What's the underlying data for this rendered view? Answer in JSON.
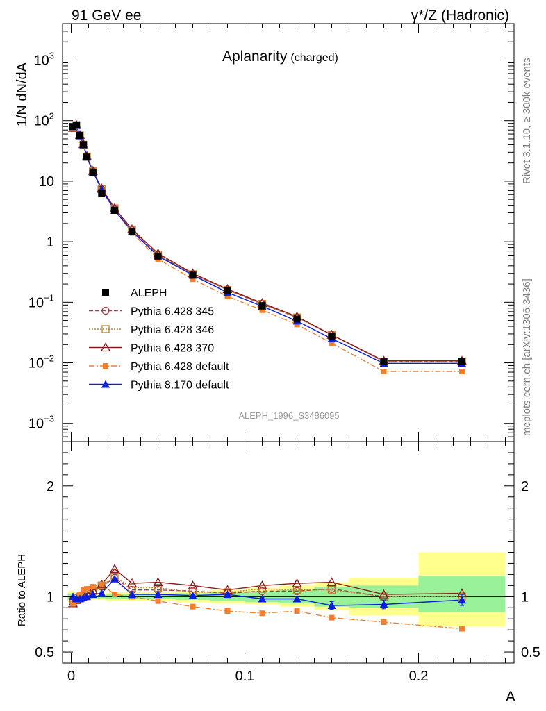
{
  "header": {
    "left": "91 GeV ee",
    "right": "γ*/Z (Hadronic)"
  },
  "side_labels": {
    "rivet": "Rivet 3.1.10, ≥ 300k events",
    "mcplots": "mcplots.cern.ch [arXiv:1306.3436]"
  },
  "colors": {
    "data": "#000000",
    "py345": "#b03a4a",
    "py346": "#b8862f",
    "py370": "#8b1a1a",
    "py6def": "#f07f2e",
    "py8def": "#0a1ee0",
    "band_inner": "#99f299",
    "band_outer": "#ffff8c"
  },
  "chart_data": [
    {
      "type": "line",
      "title": "Aplanarity",
      "title_suffix": "(charged)",
      "ylabel": "1/N dN/dA",
      "watermark": "ALEPH_1996_S3486095",
      "yscale": "log",
      "xlim": [
        -0.005,
        0.255
      ],
      "ylim": [
        0.0005,
        4000
      ],
      "y_ticks": [
        {
          "v": 0.001,
          "base": "10",
          "exp": "−3"
        },
        {
          "v": 0.01,
          "base": "10",
          "exp": "−2"
        },
        {
          "v": 0.1,
          "base": "10",
          "exp": "−1"
        },
        {
          "v": 1,
          "base": "1",
          "exp": ""
        },
        {
          "v": 10,
          "base": "10",
          "exp": ""
        },
        {
          "v": 100,
          "base": "10",
          "exp": "2"
        },
        {
          "v": 1000,
          "base": "10",
          "exp": "3"
        }
      ],
      "legend_position": "middle-left",
      "x": [
        0.001,
        0.003,
        0.005,
        0.007,
        0.009,
        0.0125,
        0.0175,
        0.025,
        0.035,
        0.05,
        0.07,
        0.09,
        0.11,
        0.13,
        0.15,
        0.18,
        0.225
      ],
      "data": {
        "name": "ALEPH",
        "values": [
          80,
          85,
          57,
          40,
          25,
          14,
          6.2,
          3.3,
          1.45,
          0.58,
          0.28,
          0.155,
          0.088,
          0.053,
          0.027,
          0.0105,
          0.0105
        ]
      },
      "series": [
        {
          "name": "Pythia 6.428 345",
          "key": "py345",
          "marker": "circle-open",
          "dash": "6,3",
          "values": [
            78,
            84,
            57,
            40,
            25.5,
            14.6,
            7.3,
            3.5,
            1.55,
            0.6,
            0.29,
            0.16,
            0.093,
            0.056,
            0.029,
            0.0105,
            0.0105
          ]
        },
        {
          "name": "Pythia 6.428 346",
          "key": "py346",
          "marker": "square-open",
          "dash": "2,2",
          "values": [
            77,
            84,
            57,
            40,
            25.5,
            14.7,
            7.4,
            3.55,
            1.57,
            0.61,
            0.29,
            0.16,
            0.094,
            0.056,
            0.029,
            0.0105,
            0.0105
          ]
        },
        {
          "name": "Pythia 6.428 370",
          "key": "py370",
          "marker": "triangle-open",
          "dash": "",
          "values": [
            76,
            85,
            58,
            41,
            26,
            14.8,
            7.6,
            3.6,
            1.6,
            0.64,
            0.3,
            0.165,
            0.097,
            0.058,
            0.029,
            0.0108,
            0.0108
          ]
        },
        {
          "name": "Pythia 6.428 default",
          "key": "py6def",
          "marker": "square-filled",
          "dash": "8,3,2,3",
          "values": [
            75,
            82,
            57,
            41,
            26,
            14.5,
            7.2,
            3.3,
            1.4,
            0.52,
            0.24,
            0.125,
            0.074,
            0.043,
            0.021,
            0.0072,
            0.0072
          ]
        },
        {
          "name": "Pythia 8.170 default",
          "key": "py8def",
          "marker": "triangle-filled",
          "dash": "",
          "values": [
            80,
            84,
            56,
            40,
            25,
            14.2,
            7.3,
            3.3,
            1.48,
            0.58,
            0.28,
            0.145,
            0.086,
            0.049,
            0.025,
            0.0098,
            0.0098
          ]
        }
      ]
    },
    {
      "type": "line",
      "ylabel": "Ratio to ALEPH",
      "xlabel": "A",
      "xlim": [
        -0.005,
        0.255
      ],
      "ylim": [
        0.4,
        2.4
      ],
      "y_ticks": [
        0.5,
        1,
        2
      ],
      "x_ticks": [
        0,
        0.1,
        0.2
      ],
      "bands": [
        {
          "x0": -0.002,
          "x1": 0.002,
          "inner": [
            0.97,
            1.03
          ],
          "outer": [
            0.95,
            1.05
          ]
        },
        {
          "x0": 0.002,
          "x1": 0.008,
          "inner": [
            0.98,
            1.02
          ],
          "outer": [
            0.97,
            1.03
          ]
        },
        {
          "x0": 0.008,
          "x1": 0.02,
          "inner": [
            0.985,
            1.015
          ],
          "outer": [
            0.975,
            1.025
          ]
        },
        {
          "x0": 0.02,
          "x1": 0.04,
          "inner": [
            0.98,
            1.02
          ],
          "outer": [
            0.96,
            1.04
          ]
        },
        {
          "x0": 0.04,
          "x1": 0.06,
          "inner": [
            0.98,
            1.02
          ],
          "outer": [
            0.96,
            1.04
          ]
        },
        {
          "x0": 0.06,
          "x1": 0.08,
          "inner": [
            0.97,
            1.03
          ],
          "outer": [
            0.95,
            1.05
          ]
        },
        {
          "x0": 0.08,
          "x1": 0.1,
          "inner": [
            0.96,
            1.04
          ],
          "outer": [
            0.94,
            1.06
          ]
        },
        {
          "x0": 0.1,
          "x1": 0.12,
          "inner": [
            0.95,
            1.05
          ],
          "outer": [
            0.93,
            1.08
          ]
        },
        {
          "x0": 0.12,
          "x1": 0.14,
          "inner": [
            0.94,
            1.06
          ],
          "outer": [
            0.91,
            1.1
          ]
        },
        {
          "x0": 0.14,
          "x1": 0.16,
          "inner": [
            0.91,
            1.09
          ],
          "outer": [
            0.88,
            1.13
          ]
        },
        {
          "x0": 0.16,
          "x1": 0.2,
          "inner": [
            0.9,
            1.1
          ],
          "outer": [
            0.83,
            1.17
          ]
        },
        {
          "x0": 0.2,
          "x1": 0.25,
          "inner": [
            0.86,
            1.19
          ],
          "outer": [
            0.73,
            1.4
          ]
        }
      ],
      "series_ratio": [
        {
          "key": "py345",
          "values": [
            0.97,
            0.99,
            1.0,
            1.01,
            1.02,
            1.04,
            1.09,
            1.17,
            1.06,
            1.06,
            1.05,
            1.03,
            1.05,
            1.05,
            1.07,
            1.0,
            1.0
          ]
        },
        {
          "key": "py346",
          "values": [
            0.96,
            0.99,
            1.0,
            1.01,
            1.02,
            1.05,
            1.1,
            1.18,
            1.08,
            1.08,
            1.04,
            1.04,
            1.07,
            1.06,
            1.06,
            1.0,
            1.0
          ]
        },
        {
          "key": "py370",
          "values": [
            0.94,
            0.97,
            0.99,
            1.02,
            1.03,
            1.06,
            1.11,
            1.25,
            1.12,
            1.13,
            1.1,
            1.06,
            1.1,
            1.12,
            1.13,
            1.02,
            1.03
          ]
        },
        {
          "key": "py6def",
          "values": [
            0.94,
            0.97,
            1.02,
            1.06,
            1.07,
            1.09,
            1.11,
            1.02,
            1.0,
            0.96,
            0.91,
            0.87,
            0.85,
            0.87,
            0.81,
            0.77,
            0.71
          ]
        },
        {
          "key": "py8def",
          "values": [
            1.0,
            0.98,
            0.98,
            0.99,
            1.0,
            1.02,
            1.03,
            1.16,
            1.02,
            1.02,
            1.01,
            1.02,
            0.98,
            0.98,
            0.92,
            0.93,
            0.97
          ]
        }
      ],
      "py8_err": [
        0,
        0,
        0,
        0,
        0,
        0,
        0,
        0,
        0,
        0,
        0,
        0,
        0.015,
        0.02,
        0.035,
        0.04,
        0.05
      ],
      "py6_err": [
        0,
        0,
        0,
        0,
        0,
        0,
        0,
        0,
        0,
        0,
        0,
        0,
        0,
        0,
        0,
        0,
        0.02
      ]
    }
  ]
}
